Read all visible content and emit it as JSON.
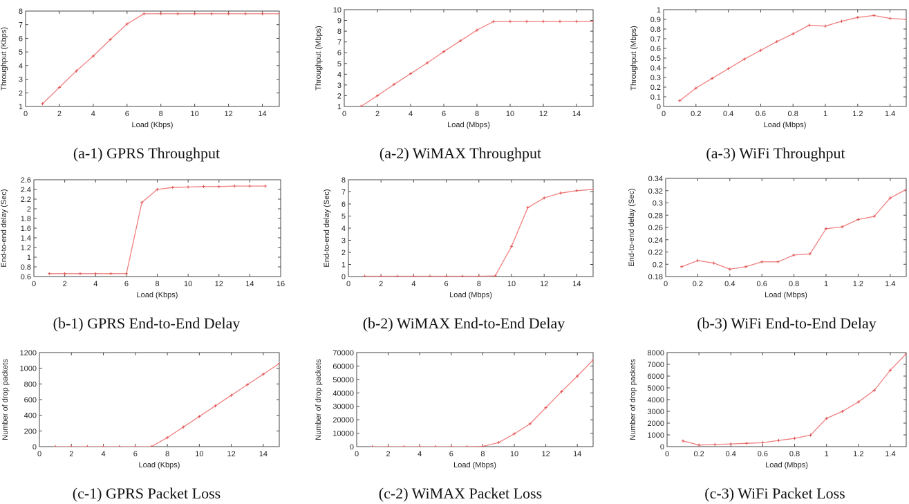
{
  "colors": {
    "series": "#f07f7f",
    "marker": "#e05050",
    "axis": "#444444"
  },
  "chart_data": [
    {
      "type": "line",
      "caption": "(a-1) GPRS Throughput",
      "xlabel": "Load (Kbps)",
      "ylabel": "Throughput (Kbps)",
      "xlim": [
        0,
        15
      ],
      "ylim": [
        1,
        8
      ],
      "xticks": [
        0,
        2,
        4,
        6,
        8,
        10,
        12,
        14
      ],
      "yticks": [
        1,
        2,
        3,
        4,
        5,
        6,
        7,
        8
      ],
      "xtick_labels": [
        "0",
        "2",
        "4",
        "6",
        "8",
        "10",
        "12",
        "14"
      ],
      "ytick_labels": [
        "1",
        "2",
        "3",
        "4",
        "5",
        "6",
        "7",
        "8"
      ],
      "x": [
        1,
        2,
        3,
        4,
        5,
        6,
        7,
        8,
        9,
        10,
        11,
        12,
        13,
        14,
        15
      ],
      "y": [
        1.2,
        2.4,
        3.6,
        4.7,
        5.9,
        7.05,
        7.8,
        7.8,
        7.8,
        7.8,
        7.8,
        7.8,
        7.8,
        7.8,
        7.8
      ]
    },
    {
      "type": "line",
      "caption": "(a-2) WiMAX Throughput",
      "xlabel": "Load (Mbps)",
      "ylabel": "Throughput (Mbps)",
      "xlim": [
        0,
        15
      ],
      "ylim": [
        1,
        10
      ],
      "xticks": [
        0,
        2,
        4,
        6,
        8,
        10,
        12,
        14
      ],
      "yticks": [
        1,
        2,
        3,
        4,
        5,
        6,
        7,
        8,
        9,
        10
      ],
      "xtick_labels": [
        "0",
        "2",
        "4",
        "6",
        "8",
        "10",
        "12",
        "14"
      ],
      "ytick_labels": [
        "1",
        "2",
        "3",
        "4",
        "5",
        "6",
        "7",
        "8",
        "9",
        "10"
      ],
      "x": [
        1,
        2,
        3,
        4,
        5,
        6,
        7,
        8,
        9,
        10,
        11,
        12,
        13,
        14,
        15
      ],
      "y": [
        1.0,
        2.0,
        3.05,
        4.05,
        5.05,
        6.1,
        7.1,
        8.1,
        8.9,
        8.9,
        8.9,
        8.9,
        8.9,
        8.9,
        8.9
      ]
    },
    {
      "type": "line",
      "caption": "(a-3) WiFi Throughput",
      "xlabel": "Load (Mbps)",
      "ylabel": "Throughput (Mbps)",
      "xlim": [
        0,
        1.5
      ],
      "ylim": [
        0,
        1
      ],
      "xticks": [
        0,
        0.2,
        0.4,
        0.6,
        0.8,
        1,
        1.2,
        1.4
      ],
      "yticks": [
        0,
        0.1,
        0.2,
        0.3,
        0.4,
        0.5,
        0.6,
        0.7,
        0.8,
        0.9,
        1
      ],
      "xtick_labels": [
        "0",
        "0.2",
        "0.4",
        "0.6",
        "0.8",
        "1",
        "1.2",
        "1.4"
      ],
      "ytick_labels": [
        "0",
        "0.1",
        "0.2",
        "0.3",
        "0.4",
        "0.5",
        "0.6",
        "0.7",
        "0.8",
        "0.9",
        "1"
      ],
      "x": [
        0.1,
        0.2,
        0.3,
        0.4,
        0.5,
        0.6,
        0.7,
        0.8,
        0.9,
        1.0,
        1.1,
        1.2,
        1.3,
        1.4,
        1.5
      ],
      "y": [
        0.06,
        0.19,
        0.29,
        0.39,
        0.49,
        0.58,
        0.67,
        0.75,
        0.84,
        0.83,
        0.88,
        0.92,
        0.94,
        0.91,
        0.9
      ]
    },
    {
      "type": "line",
      "caption": "(b-1) GPRS End-to-End Delay",
      "xlabel": "Load (Kbps)",
      "ylabel": "End-to-end delay (Sec)",
      "xlim": [
        0,
        16
      ],
      "ylim": [
        0.6,
        2.6
      ],
      "xticks": [
        0,
        2,
        4,
        6,
        8,
        10,
        12,
        14,
        16
      ],
      "yticks": [
        0.6,
        0.8,
        1,
        1.2,
        1.4,
        1.6,
        1.8,
        2,
        2.2,
        2.4,
        2.6
      ],
      "xtick_labels": [
        "0",
        "2",
        "4",
        "6",
        "8",
        "10",
        "12",
        "14",
        "16"
      ],
      "ytick_labels": [
        "0.6",
        "0.8",
        "1",
        "1.2",
        "1.4",
        "1.6",
        "1.8",
        "2",
        "2.2",
        "2.4",
        "2.6"
      ],
      "x": [
        1,
        2,
        3,
        4,
        5,
        6,
        7,
        8,
        9,
        10,
        11,
        12,
        13,
        14,
        15
      ],
      "y": [
        0.66,
        0.66,
        0.66,
        0.66,
        0.66,
        0.66,
        2.13,
        2.4,
        2.44,
        2.45,
        2.46,
        2.46,
        2.47,
        2.47,
        2.47
      ]
    },
    {
      "type": "line",
      "caption": "(b-2) WiMAX End-to-End Delay",
      "xlabel": "Load (Mbps)",
      "ylabel": "End-to-end delay (Sec)",
      "xlim": [
        0,
        15
      ],
      "ylim": [
        0,
        8
      ],
      "xticks": [
        0,
        2,
        4,
        6,
        8,
        10,
        12,
        14
      ],
      "yticks": [
        0,
        1,
        2,
        3,
        4,
        5,
        6,
        7,
        8
      ],
      "xtick_labels": [
        "0",
        "2",
        "4",
        "6",
        "8",
        "10",
        "12",
        "14"
      ],
      "ytick_labels": [
        "0",
        "1",
        "2",
        "3",
        "4",
        "5",
        "6",
        "7",
        "8"
      ],
      "x": [
        1,
        2,
        3,
        4,
        5,
        6,
        7,
        8,
        9,
        10,
        11,
        12,
        13,
        14,
        15
      ],
      "y": [
        0.03,
        0.03,
        0.03,
        0.03,
        0.03,
        0.03,
        0.03,
        0.03,
        0.05,
        2.5,
        5.7,
        6.5,
        6.9,
        7.1,
        7.2
      ]
    },
    {
      "type": "line",
      "caption": "(b-3) WiFi End-to-End Delay",
      "xlabel": "Load (Mbps)",
      "ylabel": "End-to-end delay (Sec)",
      "xlim": [
        0,
        1.5
      ],
      "ylim": [
        0.18,
        0.34
      ],
      "xticks": [
        0,
        0.2,
        0.4,
        0.6,
        0.8,
        1,
        1.2,
        1.4
      ],
      "yticks": [
        0.18,
        0.2,
        0.22,
        0.24,
        0.26,
        0.28,
        0.3,
        0.32,
        0.34
      ],
      "xtick_labels": [
        "0",
        "0.2",
        "0.4",
        "0.6",
        "0.8",
        "1",
        "1.2",
        "1.4"
      ],
      "ytick_labels": [
        "0.18",
        "0.2",
        "0.22",
        "0.24",
        "0.26",
        "0.28",
        "0.3",
        "0.32",
        "0.34"
      ],
      "x": [
        0.1,
        0.2,
        0.3,
        0.4,
        0.5,
        0.6,
        0.7,
        0.8,
        0.9,
        1.0,
        1.1,
        1.2,
        1.3,
        1.4,
        1.5
      ],
      "y": [
        0.196,
        0.206,
        0.202,
        0.192,
        0.196,
        0.204,
        0.204,
        0.215,
        0.217,
        0.258,
        0.261,
        0.273,
        0.278,
        0.308,
        0.322
      ]
    },
    {
      "type": "line",
      "caption": "(c-1) GPRS Packet Loss",
      "xlabel": "Load (Kbps)",
      "ylabel": "Number of drop packets",
      "xlim": [
        0,
        15
      ],
      "ylim": [
        0,
        1200
      ],
      "xticks": [
        0,
        2,
        4,
        6,
        8,
        10,
        12,
        14
      ],
      "yticks": [
        0,
        200,
        400,
        600,
        800,
        1000,
        1200
      ],
      "xtick_labels": [
        "0",
        "2",
        "4",
        "6",
        "8",
        "10",
        "12",
        "14"
      ],
      "ytick_labels": [
        "0",
        "200",
        "400",
        "600",
        "800",
        "1000",
        "1200"
      ],
      "x": [
        1,
        2,
        3,
        4,
        5,
        6,
        7,
        8,
        9,
        10,
        11,
        12,
        13,
        14,
        15
      ],
      "y": [
        0,
        0,
        0,
        0,
        0,
        0,
        0,
        115,
        250,
        385,
        520,
        655,
        790,
        925,
        1060
      ]
    },
    {
      "type": "line",
      "caption": "(c-2) WiMAX Packet Loss",
      "xlabel": "Load (Mbps)",
      "ylabel": "Number of drop packets",
      "xlim": [
        0,
        15
      ],
      "ylim": [
        0,
        70000
      ],
      "xticks": [
        0,
        2,
        4,
        6,
        8,
        10,
        12,
        14
      ],
      "yticks": [
        0,
        10000,
        20000,
        30000,
        40000,
        50000,
        60000,
        70000
      ],
      "xtick_labels": [
        "0",
        "2",
        "4",
        "6",
        "8",
        "10",
        "12",
        "14"
      ],
      "ytick_labels": [
        "0",
        "10000",
        "20000",
        "30000",
        "40000",
        "50000",
        "60000",
        "70000"
      ],
      "x": [
        1,
        2,
        3,
        4,
        5,
        6,
        7,
        8,
        9,
        10,
        11,
        12,
        13,
        14,
        15
      ],
      "y": [
        0,
        0,
        0,
        0,
        0,
        0,
        0,
        200,
        3000,
        9500,
        17000,
        29000,
        41000,
        52500,
        64500
      ]
    },
    {
      "type": "line",
      "caption": "(c-3) WiFi Packet Loss",
      "xlabel": "Load (Mbps)",
      "ylabel": "Number of drop packets",
      "xlim": [
        0,
        1.5
      ],
      "ylim": [
        0,
        8000
      ],
      "xticks": [
        0,
        0.2,
        0.4,
        0.6,
        0.8,
        1,
        1.2,
        1.4
      ],
      "yticks": [
        0,
        1000,
        2000,
        3000,
        4000,
        5000,
        6000,
        7000,
        8000
      ],
      "xtick_labels": [
        "0",
        "0.2",
        "0.4",
        "0.6",
        "0.8",
        "1",
        "1.2",
        "1.4"
      ],
      "ytick_labels": [
        "0",
        "1000",
        "2000",
        "3000",
        "4000",
        "5000",
        "6000",
        "7000",
        "8000"
      ],
      "x": [
        0.1,
        0.2,
        0.3,
        0.4,
        0.5,
        0.6,
        0.7,
        0.8,
        0.9,
        1.0,
        1.1,
        1.2,
        1.3,
        1.4,
        1.5
      ],
      "y": [
        480,
        130,
        180,
        230,
        280,
        330,
        530,
        700,
        980,
        2400,
        3000,
        3800,
        4800,
        6500,
        7900
      ]
    }
  ]
}
